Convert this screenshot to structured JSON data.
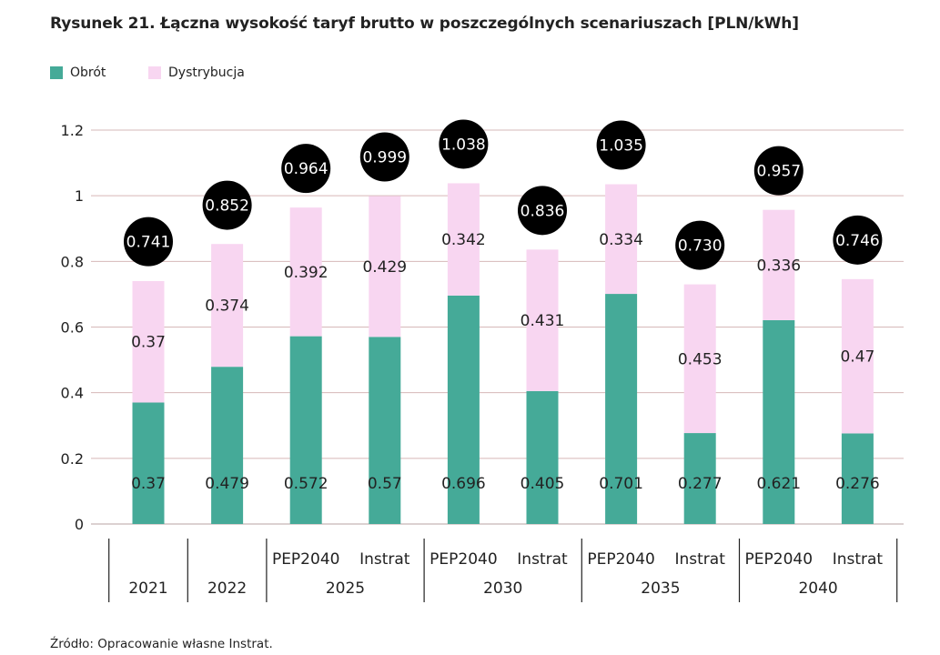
{
  "title": "Rysunek 21. Łączna wysokość taryf brutto w poszczególnych scenariuszach [PLN/kWh]",
  "source": "Źródło: Opracowanie własne Instrat.",
  "colors": {
    "obrot": "#45aa98",
    "dystrybucja": "#f8d6f1",
    "gridline": "#d6b8b8",
    "bubble": "#000000"
  },
  "chart_data": {
    "type": "bar",
    "stacked": true,
    "ylim": [
      0,
      1.2
    ],
    "yticks": [
      "0",
      "0.2",
      "0.4",
      "0.6",
      "0.8",
      "1",
      "1.2"
    ],
    "grid": true,
    "legend_position": "top-left",
    "categories": [
      {
        "label": "",
        "group": "2021"
      },
      {
        "label": "",
        "group": "2022"
      },
      {
        "label": "PEP2040",
        "group": "2025"
      },
      {
        "label": "Instrat",
        "group": "2025"
      },
      {
        "label": "PEP2040",
        "group": "2030"
      },
      {
        "label": "Instrat",
        "group": "2030"
      },
      {
        "label": "PEP2040",
        "group": "2035"
      },
      {
        "label": "Instrat",
        "group": "2035"
      },
      {
        "label": "PEP2040",
        "group": "2040"
      },
      {
        "label": "Instrat",
        "group": "2040"
      }
    ],
    "groups": [
      "2021",
      "2022",
      "2025",
      "2030",
      "2035",
      "2040"
    ],
    "series": [
      {
        "name": "Obrót",
        "values": [
          0.37,
          0.479,
          0.572,
          0.57,
          0.696,
          0.405,
          0.701,
          0.277,
          0.621,
          0.276
        ],
        "labels": [
          "0.37",
          "0.479",
          "0.572",
          "0.57",
          "0.696",
          "0.405",
          "0.701",
          "0.277",
          "0.621",
          "0.276"
        ]
      },
      {
        "name": "Dystrybucja",
        "values": [
          0.37,
          0.374,
          0.392,
          0.429,
          0.342,
          0.431,
          0.334,
          0.453,
          0.336,
          0.47
        ],
        "labels": [
          "0.37",
          "0.374",
          "0.392",
          "0.429",
          "0.342",
          "0.431",
          "0.334",
          "0.453",
          "0.336",
          "0.47"
        ]
      }
    ],
    "totals": [
      "0.741",
      "0.852",
      "0.964",
      "0.999",
      "1.038",
      "0.836",
      "1.035",
      "0.730",
      "0.957",
      "0.746"
    ]
  }
}
